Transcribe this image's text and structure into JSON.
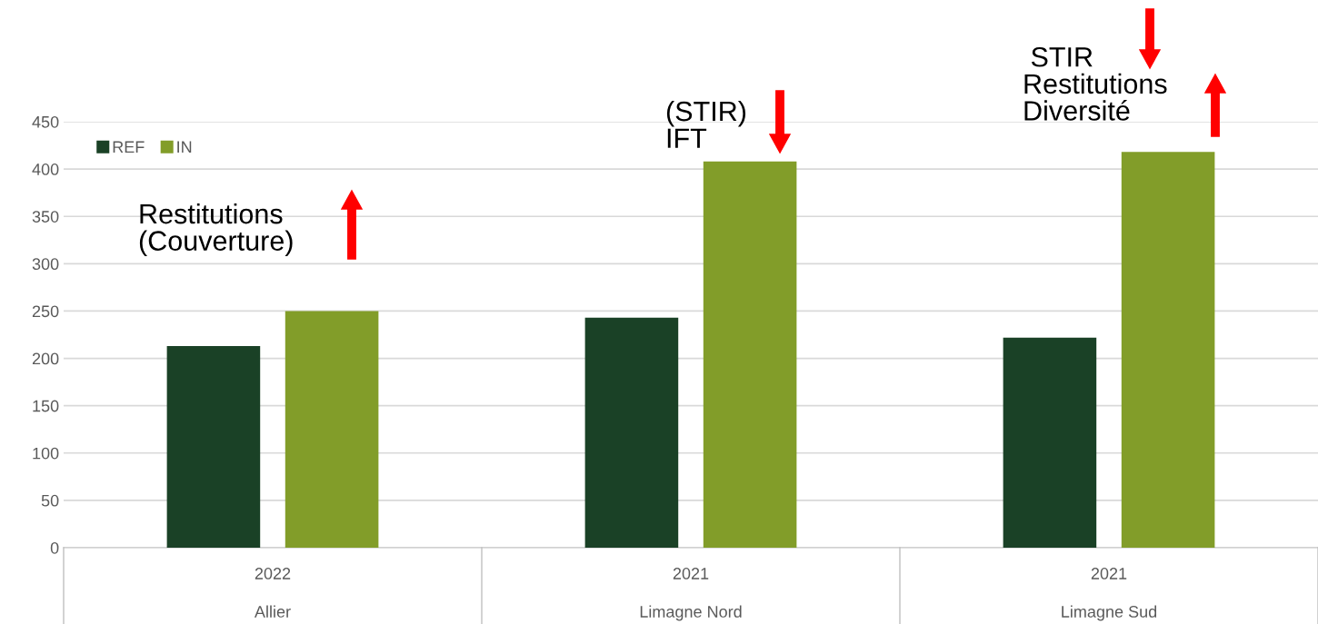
{
  "chart_data": {
    "type": "bar",
    "categories": [
      "2022\nAllier",
      "2021\nLimagne Nord",
      "2021\nLimagne Sud"
    ],
    "series": [
      {
        "name": "REF",
        "color": "#1a4126",
        "values": [
          213,
          243,
          222
        ]
      },
      {
        "name": "IN",
        "color": "#829d29",
        "values": [
          250,
          408,
          418
        ]
      }
    ],
    "ylim": [
      0,
      450
    ],
    "yticks": [
      0,
      50,
      100,
      150,
      200,
      250,
      300,
      350,
      400,
      450
    ],
    "grid": "y",
    "legend": "top left",
    "annotations": [
      "Restitutions\n(Couverture)",
      "(STIR)\nIFT",
      " STIR\nRestitutions\nDiversité"
    ]
  }
}
